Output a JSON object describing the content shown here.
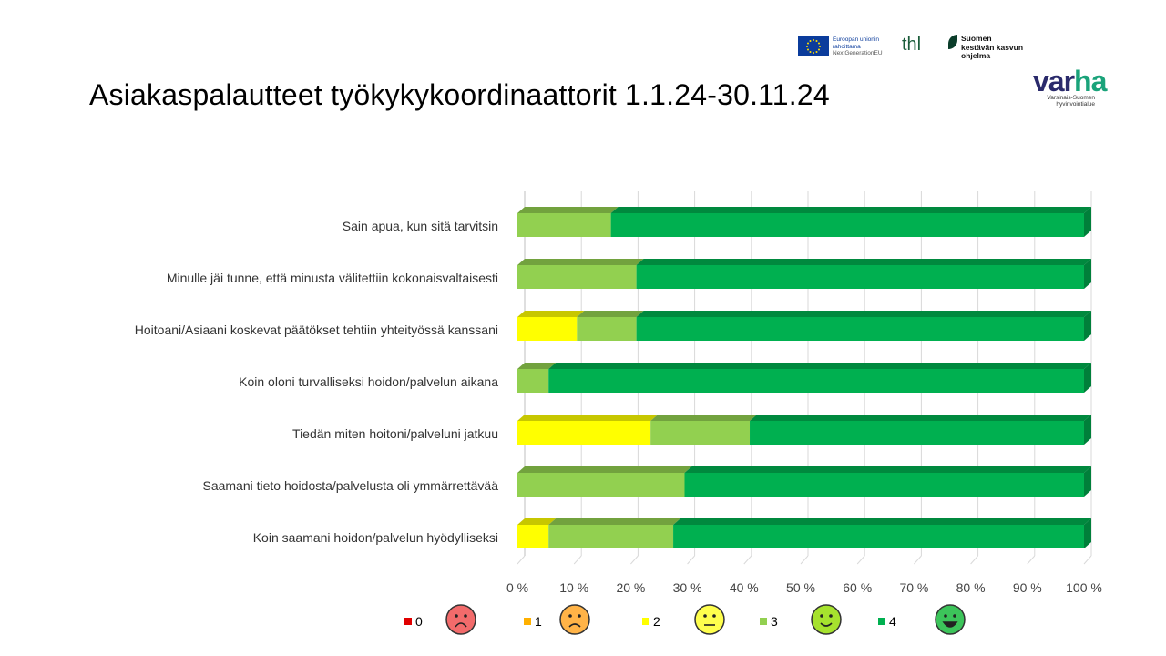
{
  "title": "Asiakaspalautteet työkykykoordinaattorit 1.1.24-30.11.24",
  "logos": {
    "eu_line1": "Euroopan unionin",
    "eu_line2": "rahoittama",
    "eu_line3": "NextGenerationEU",
    "thl": "thl",
    "skk_line1": "Suomen",
    "skk_line2": "kestävän kasvun",
    "skk_line3": "ohjelma",
    "varha_a": "var",
    "varha_b": "ha",
    "varha_sub1": "Varsinais-Suomen",
    "varha_sub2": "hyvinvointialue"
  },
  "colors": {
    "0": "#e00000",
    "1": "#ffb000",
    "2": "#ffff00",
    "3": "#92d050",
    "4": "#00b050"
  },
  "chart_data": {
    "type": "bar",
    "orientation": "horizontal",
    "stacked": "percent",
    "categories": [
      "Sain apua, kun sitä tarvitsin",
      "Minulle jäi tunne, että minusta välitettiin kokonaisvaltaisesti",
      "Hoitoani/Asiaani koskevat päätökset tehtiin yhteityössä kanssani",
      "Koin oloni turvalliseksi hoidon/palvelun aikana",
      "Tiedän miten hoitoni/palveluni jatkuu",
      "Saamani tieto hoidosta/palvelusta oli ymmärrettävää",
      "Koin saamani hoidon/palvelun hyödylliseksi"
    ],
    "series": [
      {
        "name": "0",
        "values": [
          0,
          0,
          0,
          0,
          0,
          0,
          0
        ]
      },
      {
        "name": "1",
        "values": [
          0,
          0,
          0,
          0,
          0,
          0,
          0
        ]
      },
      {
        "name": "2",
        "values": [
          0,
          0,
          10.5,
          0,
          23.5,
          0,
          5.5
        ]
      },
      {
        "name": "3",
        "values": [
          16.5,
          21,
          10.5,
          5.5,
          17.5,
          29.5,
          22
        ]
      },
      {
        "name": "4",
        "values": [
          83.5,
          79,
          79,
          94.5,
          59,
          70.5,
          72.5
        ]
      }
    ],
    "xticks": [
      "0 %",
      "10 %",
      "20 %",
      "30 %",
      "40 %",
      "50 %",
      "60 %",
      "70 %",
      "80 %",
      "90 %",
      "100 %"
    ],
    "xlim": [
      0,
      100
    ],
    "grid": true,
    "legend": [
      "0",
      "1",
      "2",
      "3",
      "4"
    ],
    "legend_placement": "bottom"
  }
}
